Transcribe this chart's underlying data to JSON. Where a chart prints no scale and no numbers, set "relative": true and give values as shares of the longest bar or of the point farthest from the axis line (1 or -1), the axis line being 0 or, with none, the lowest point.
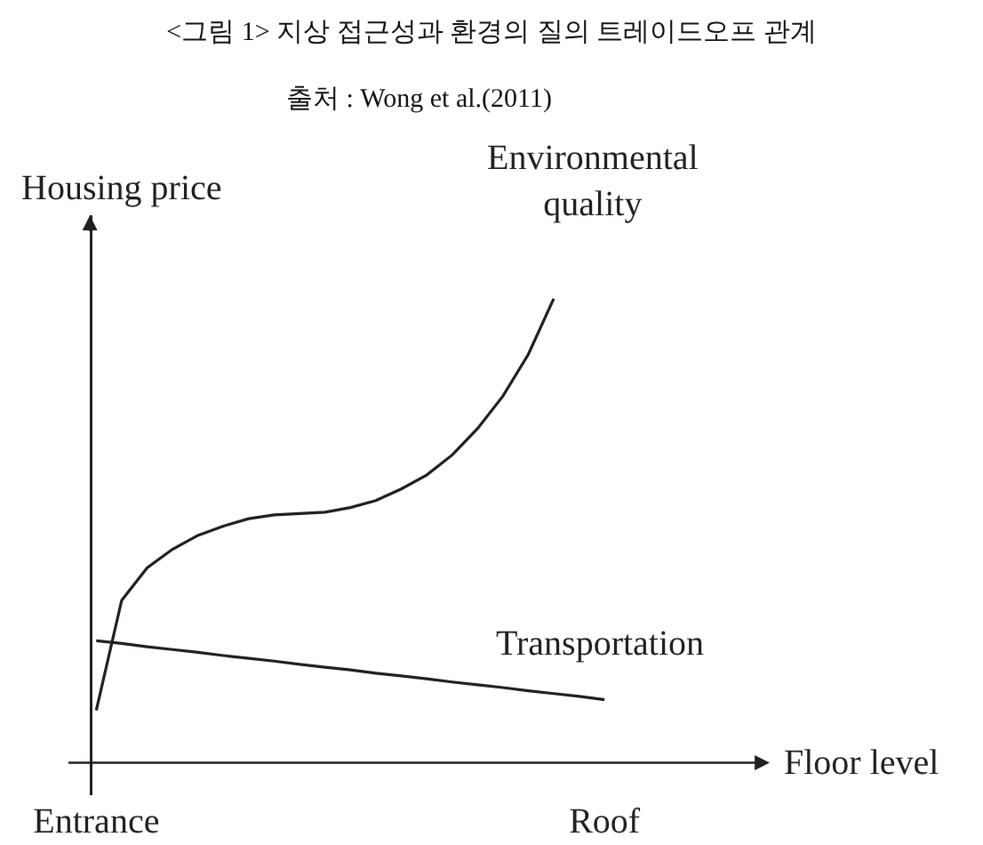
{
  "chart_data": {
    "type": "line",
    "title": "<그림 1> 지상 접근성과 환경의 질의 트레이드오프 관계",
    "subtitle": "출처 : Wong et al.(2011)",
    "xlabel": "Floor level",
    "ylabel": "Housing price",
    "relative": true,
    "grid": false,
    "legend": false,
    "marker": "none",
    "line_style": "solid",
    "categories": [
      "Entrance",
      null,
      null,
      null,
      null,
      null,
      null,
      null,
      null,
      null,
      null,
      null,
      null,
      null,
      null,
      null,
      null,
      null,
      null,
      null,
      "Roof",
      null,
      null,
      null,
      null,
      null,
      null
    ],
    "series": [
      {
        "name": "Environmental quality",
        "color": "#231f20",
        "values": [
          0.113,
          0.35,
          0.42,
          0.46,
          0.49,
          0.51,
          0.526,
          0.534,
          0.537,
          0.54,
          0.55,
          0.565,
          0.59,
          0.62,
          0.663,
          0.72,
          0.79,
          0.88,
          1,
          null,
          null,
          null,
          null,
          null,
          null,
          null,
          null
        ]
      },
      {
        "name": "Transportation",
        "color": "#231f20",
        "values": [
          0.263,
          0.257,
          0.25,
          0.244,
          0.238,
          0.231,
          0.225,
          0.219,
          0.212,
          0.206,
          0.2,
          0.193,
          0.187,
          0.181,
          0.174,
          0.168,
          0.162,
          0.155,
          0.149,
          0.143,
          0.136,
          null,
          null,
          null,
          null,
          null,
          null
        ]
      }
    ]
  }
}
